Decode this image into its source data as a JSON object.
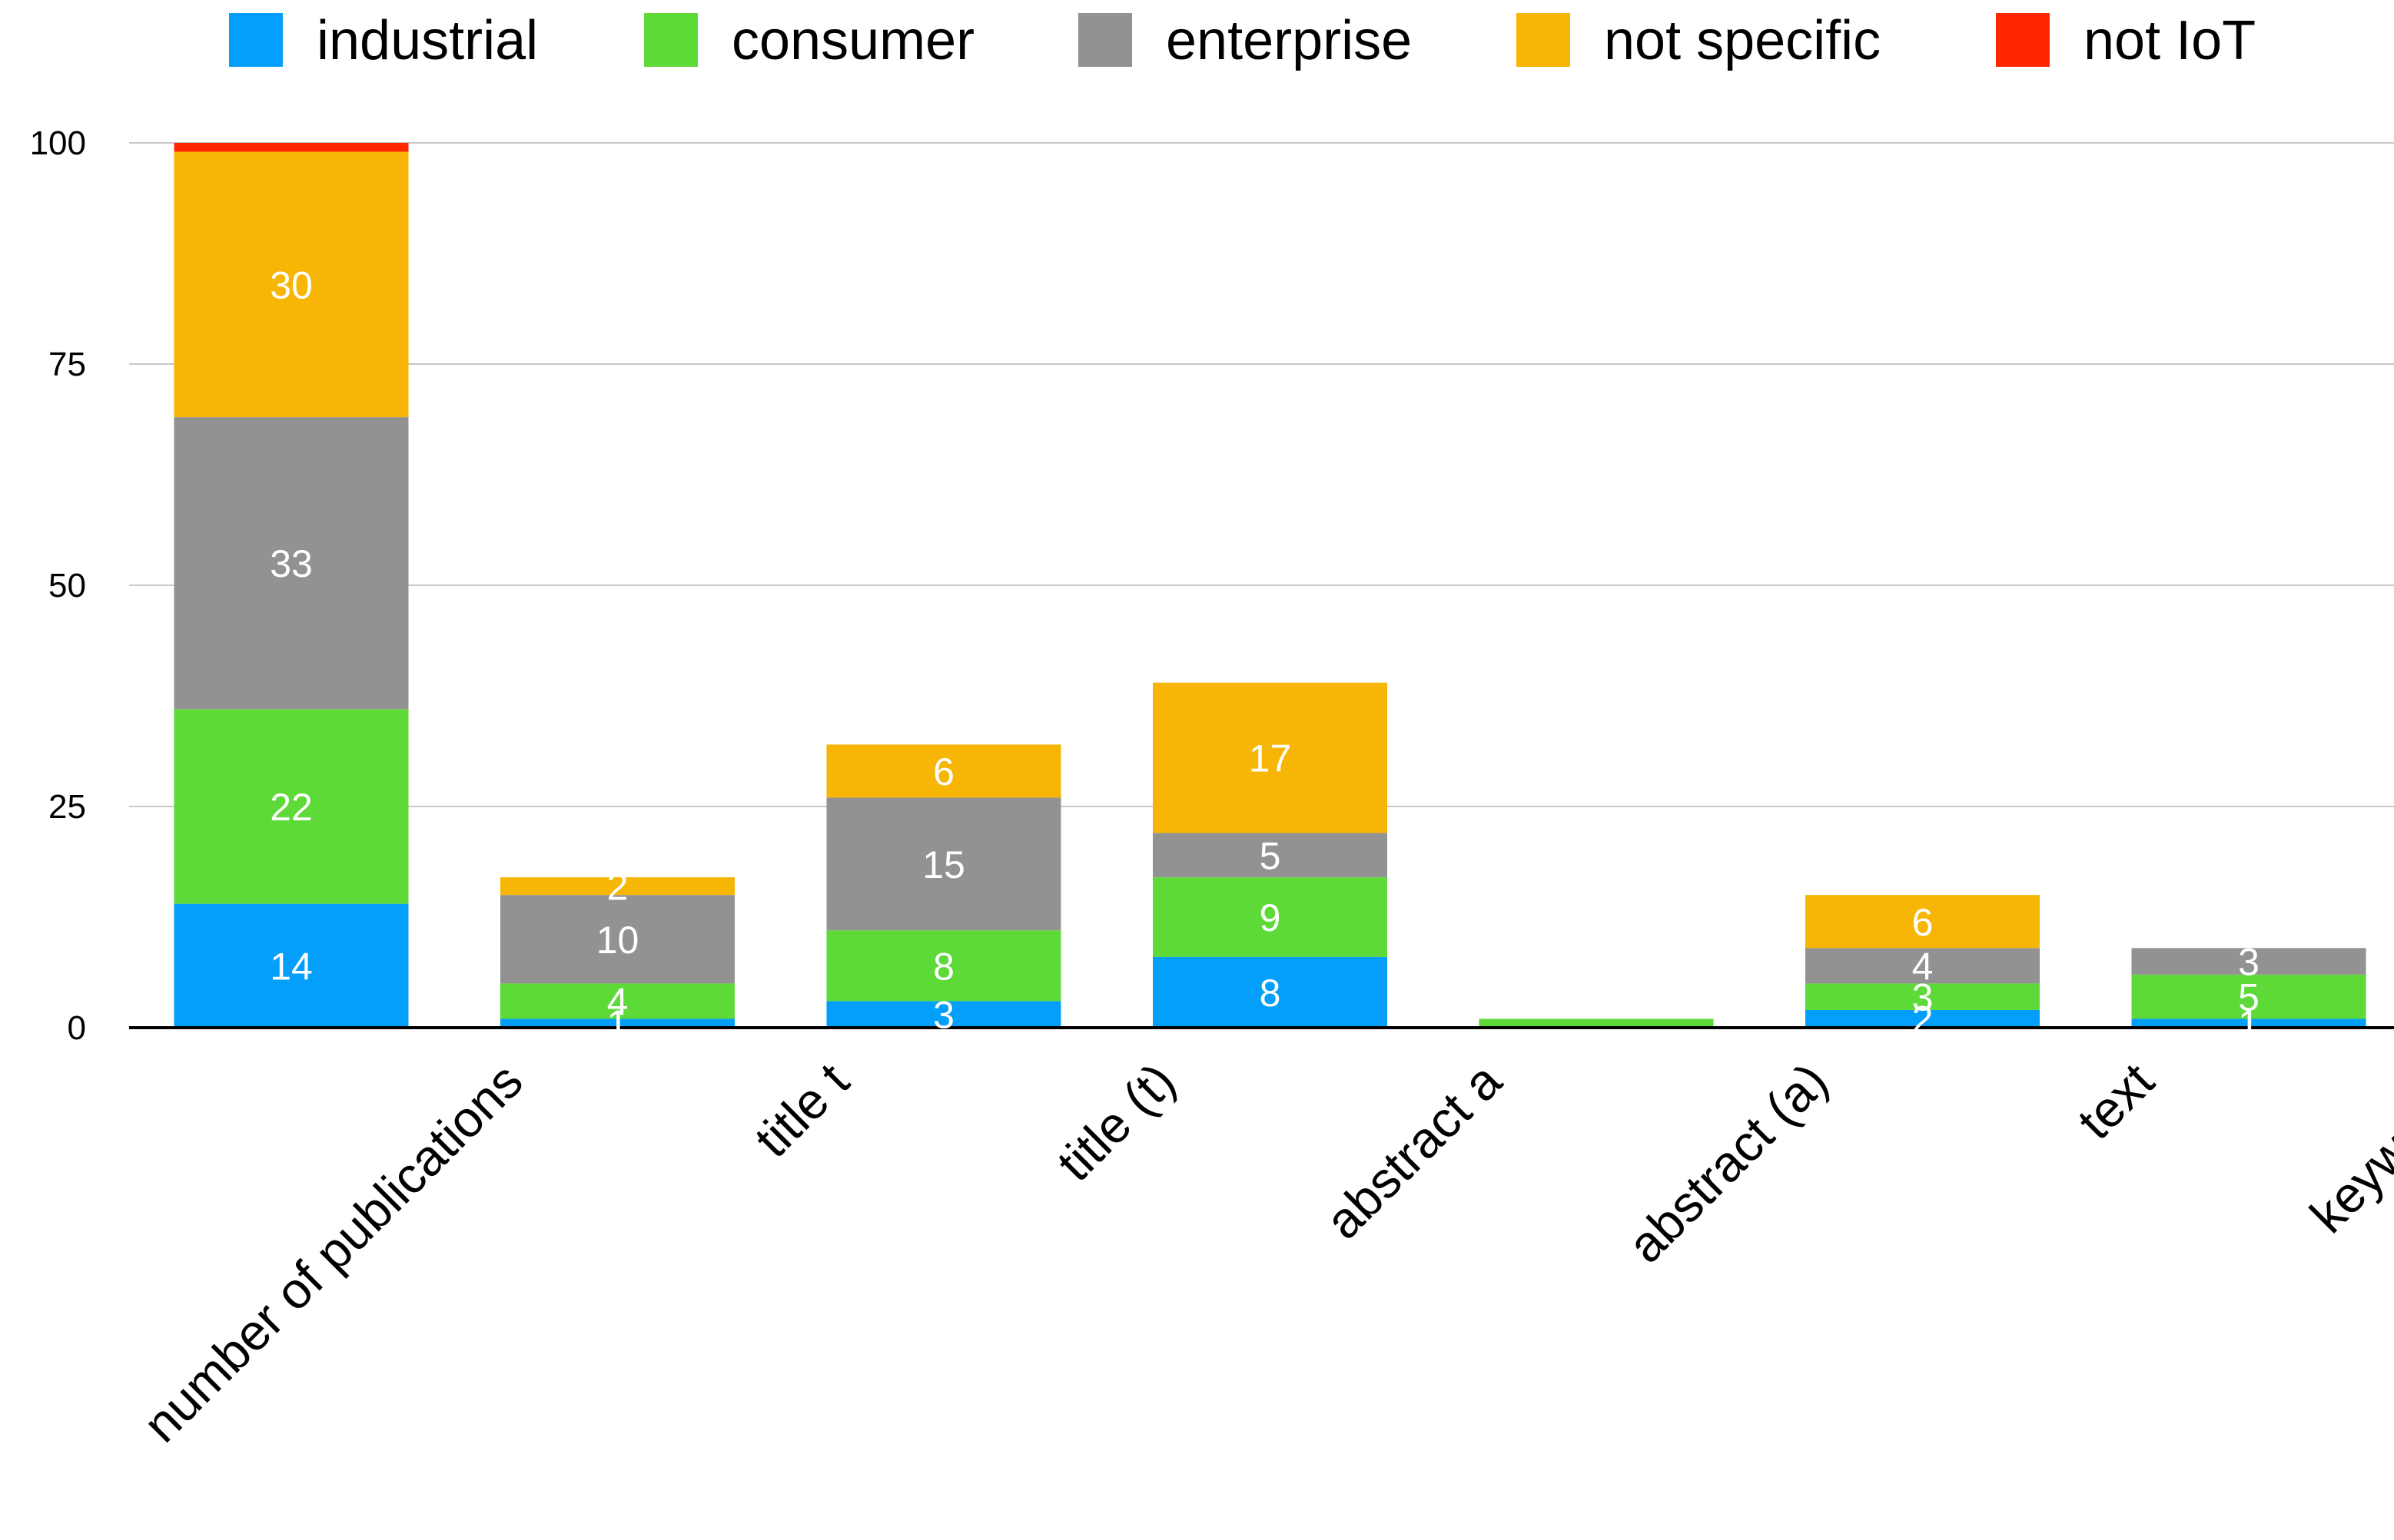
{
  "chart_data": {
    "type": "bar",
    "stacked": true,
    "title": "",
    "xlabel": "",
    "ylabel": "",
    "ylim": [
      0,
      100
    ],
    "yticks": [
      0,
      25,
      50,
      75,
      100
    ],
    "grid": true,
    "legend_position": "top",
    "categories": [
      "number of publications",
      "title t",
      "title (t)",
      "abstract a",
      "abstract (a)",
      "text",
      "keywords"
    ],
    "series": [
      {
        "name": "industrial",
        "color": "#049ffa",
        "values": [
          14,
          1,
          3,
          8,
          0,
          2,
          1
        ]
      },
      {
        "name": "consumer",
        "color": "#5dd938",
        "values": [
          22,
          4,
          8,
          9,
          1,
          3,
          5
        ]
      },
      {
        "name": "enterprise",
        "color": "#929292",
        "values": [
          33,
          10,
          15,
          5,
          0,
          4,
          3
        ]
      },
      {
        "name": "not specific",
        "color": "#f7b505",
        "values": [
          30,
          2,
          6,
          17,
          0,
          6,
          0
        ]
      },
      {
        "name": "not IoT",
        "color": "#ff2600",
        "values": [
          1,
          0,
          0,
          0,
          0,
          0,
          0
        ]
      }
    ],
    "data_labels": [
      [
        "14",
        "1",
        "3",
        "8",
        "",
        "2",
        "1"
      ],
      [
        "22",
        "4",
        "8",
        "9",
        "",
        "3",
        "5"
      ],
      [
        "33",
        "10",
        "15",
        "5",
        "",
        "4",
        "3"
      ],
      [
        "30",
        "2",
        "6",
        "17",
        "",
        "6",
        ""
      ],
      [
        "",
        "",
        "",
        "",
        "",
        "",
        ""
      ]
    ]
  }
}
